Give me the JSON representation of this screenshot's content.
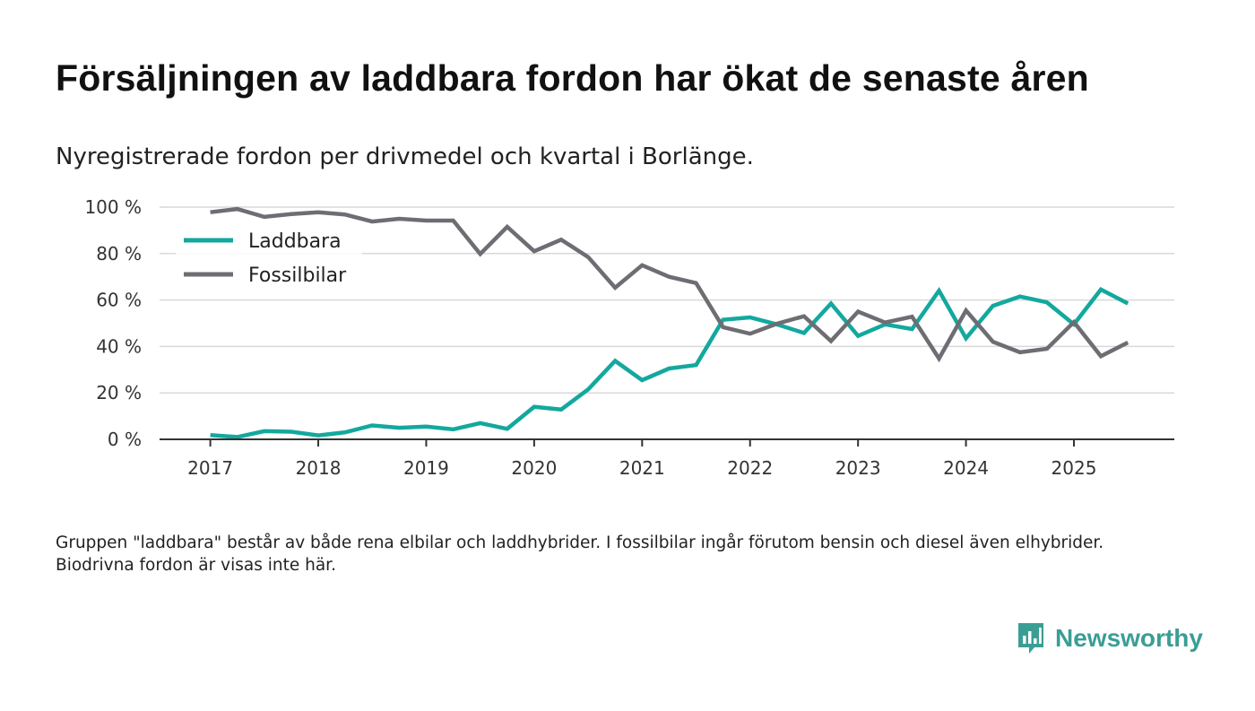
{
  "title": "Försäljningen av laddbara fordon har ökat de senaste åren",
  "subtitle": "Nyregistrerade fordon per drivmedel och kvartal i Borlänge.",
  "footnote": "Gruppen \"laddbara\" består av både rena elbilar och laddhybrider. I fossilbilar ingår förutom bensin och diesel även elhybrider. Biodrivna fordon är visas inte här.",
  "brand": {
    "name": "Newsworthy",
    "icon": "newsworthy-chat-bar-icon",
    "color": "#3a9e94"
  },
  "chart_data": {
    "type": "line",
    "title": "Försäljningen av laddbara fordon har ökat de senaste åren",
    "subtitle": "Nyregistrerade fordon per drivmedel och kvartal i Borlänge.",
    "xlabel": "",
    "ylabel": "",
    "x_start": 2017.0,
    "x_step": 0.25,
    "xlim": [
      2016.53,
      2025.93
    ],
    "ylim": [
      0,
      100
    ],
    "x_ticks": [
      2017,
      2018,
      2019,
      2020,
      2021,
      2022,
      2023,
      2024,
      2025
    ],
    "x_tick_labels": [
      "2017",
      "2018",
      "2019",
      "2020",
      "2021",
      "2022",
      "2023",
      "2024",
      "2025"
    ],
    "y_ticks": [
      0,
      20,
      40,
      60,
      80,
      100
    ],
    "y_tick_labels": [
      "0 %",
      "20 %",
      "40 %",
      "60 %",
      "80 %",
      "100 %"
    ],
    "grid": true,
    "legend_position": "top-left",
    "series": [
      {
        "name": "Laddbara",
        "color": "#13a89e",
        "values": [
          1.8,
          1.0,
          3.5,
          3.3,
          1.7,
          3.0,
          6.0,
          5.0,
          5.5,
          4.3,
          7.0,
          4.5,
          14.0,
          12.8,
          21.5,
          33.8,
          25.5,
          30.5,
          32.0,
          51.5,
          52.5,
          49.5,
          45.8,
          58.5,
          44.5,
          49.5,
          47.5,
          64.0,
          43.5,
          57.5,
          61.5,
          59.0,
          49.5,
          64.5,
          58.5
        ]
      },
      {
        "name": "Fossilbilar",
        "color": "#6e6d73",
        "values": [
          97.8,
          99.2,
          95.8,
          97.0,
          97.8,
          96.8,
          93.8,
          95.0,
          94.2,
          94.2,
          79.8,
          91.5,
          81.0,
          86.0,
          78.5,
          65.3,
          75.0,
          70.0,
          67.3,
          48.3,
          45.5,
          49.8,
          53.0,
          42.3,
          55.0,
          50.3,
          52.8,
          34.8,
          55.5,
          42.0,
          37.5,
          39.0,
          50.5,
          35.8,
          41.7
        ]
      }
    ]
  }
}
